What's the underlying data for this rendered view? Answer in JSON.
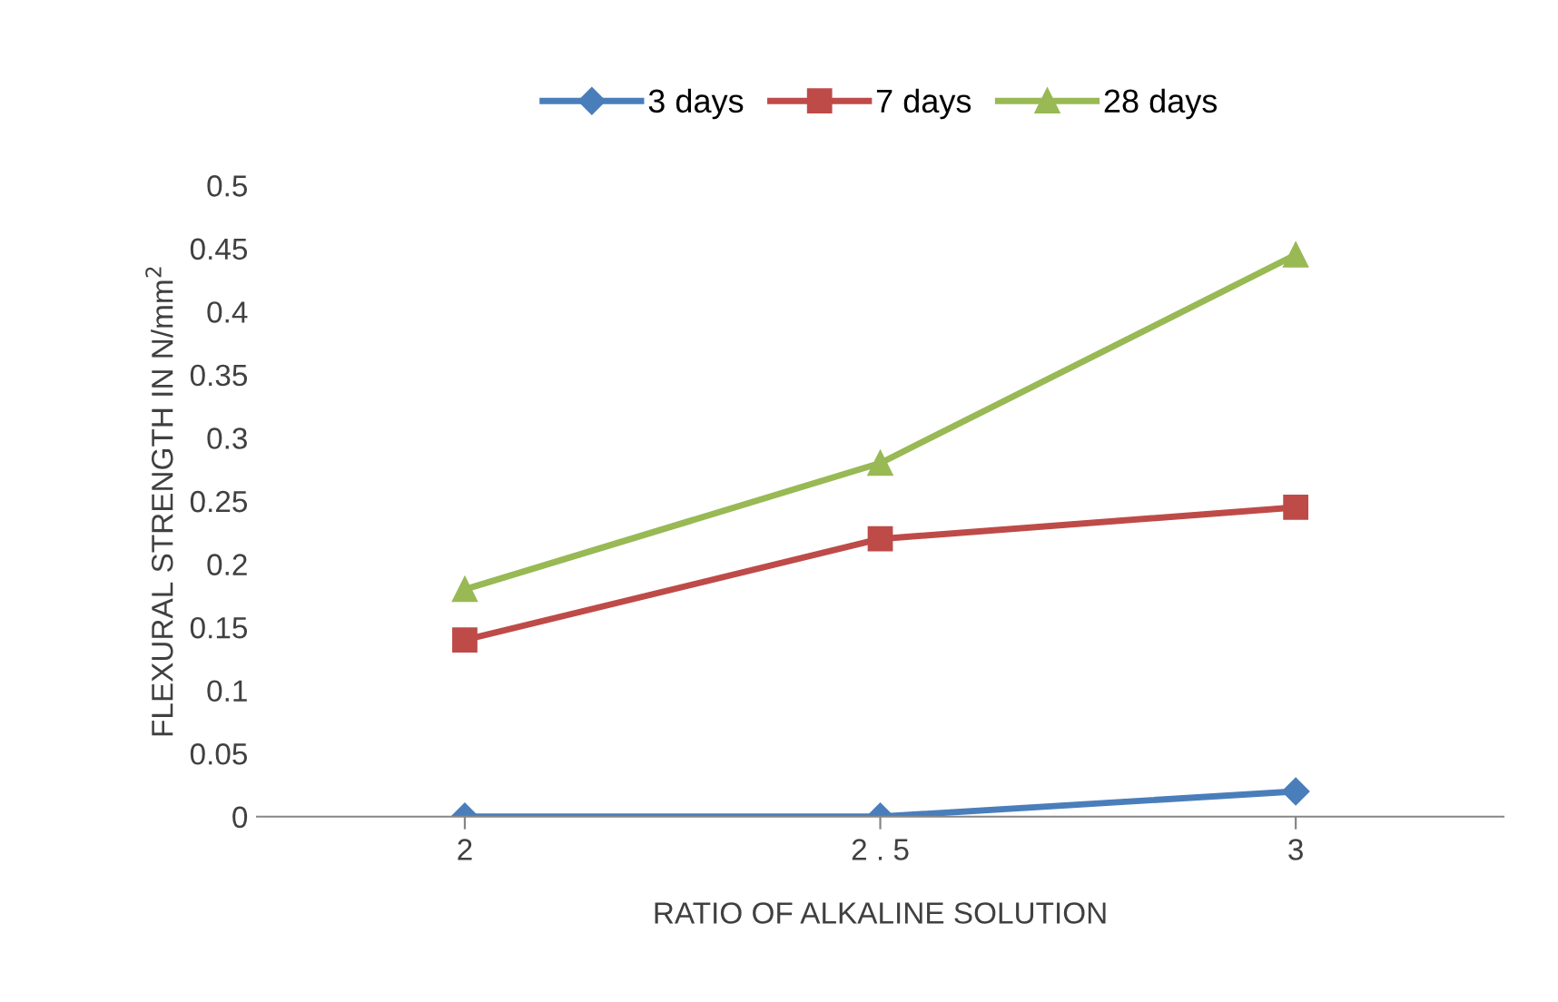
{
  "chart_data": {
    "type": "line",
    "xlabel": "RATIO OF ALKALINE SOLUTION",
    "ylabel": "FLEXURAL STRENGTH IN N/mm$^{2}$",
    "categories": [
      "2",
      "2 . 5",
      "3"
    ],
    "series": [
      {
        "name": "3 days",
        "color": "#4a7ebb",
        "values": [
          0,
          0,
          0.02
        ],
        "marker": "diamond"
      },
      {
        "name": "7 days",
        "color": "#be4b48",
        "values": [
          0.14,
          0.22,
          0.245
        ],
        "marker": "square"
      },
      {
        "name": "28 days",
        "color": "#98b954",
        "values": [
          0.18,
          0.28,
          0.445
        ],
        "marker": "triangle"
      }
    ],
    "ylim": [
      0,
      0.5
    ],
    "yticks": [
      0,
      0.05,
      0.1,
      0.15,
      0.2,
      0.25,
      0.3,
      0.35,
      0.4,
      0.45,
      0.5
    ],
    "grid": false,
    "legend": "top",
    "line_style": "solid"
  }
}
